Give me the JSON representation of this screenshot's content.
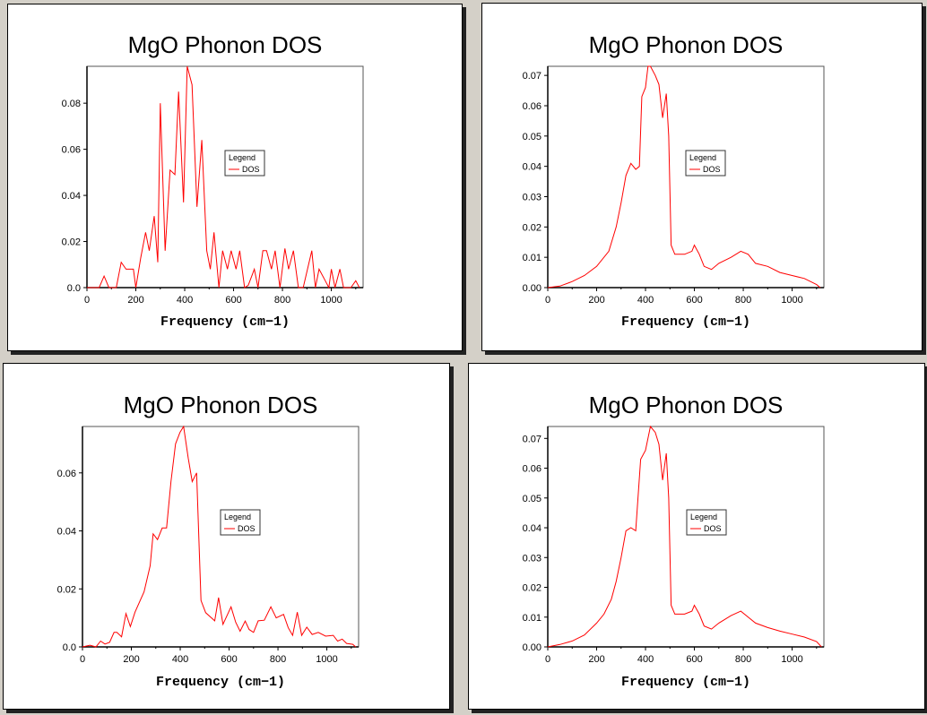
{
  "chart_data": [
    {
      "type": "line",
      "title": "MgO Phonon DOS",
      "xlabel": "Frequency (cm−1)",
      "ylabel": "",
      "xlim": [
        0,
        1130
      ],
      "ylim": [
        0,
        0.096
      ],
      "xticks": [
        0,
        200,
        400,
        600,
        800,
        1000
      ],
      "yticks": [
        0.0,
        0.02,
        0.04,
        0.06,
        0.08
      ],
      "ytick_labels": [
        "0.0",
        "0.02",
        "0.04",
        "0.06",
        "0.08"
      ],
      "legend": {
        "title": "Legend",
        "entries": [
          "DOS"
        ],
        "placement": "center-right"
      },
      "grid": false,
      "color": "#ff0000",
      "series": [
        {
          "name": "DOS",
          "x": [
            0,
            50,
            70,
            90,
            120,
            140,
            160,
            190,
            200,
            220,
            240,
            255,
            275,
            290,
            300,
            320,
            340,
            360,
            375,
            395,
            410,
            430,
            450,
            470,
            490,
            505,
            520,
            540,
            555,
            575,
            590,
            610,
            625,
            645,
            660,
            685,
            700,
            720,
            735,
            755,
            770,
            790,
            810,
            825,
            845,
            865,
            885,
            920,
            935,
            950,
            975,
            990,
            1000,
            1015,
            1035,
            1050,
            1080,
            1100,
            1115
          ],
          "y": [
            0,
            0,
            0.005,
            0,
            0,
            0.011,
            0.008,
            0.008,
            0,
            0.013,
            0.024,
            0.016,
            0.031,
            0.011,
            0.08,
            0.016,
            0.051,
            0.049,
            0.085,
            0.037,
            0.096,
            0.088,
            0.035,
            0.064,
            0.016,
            0.008,
            0.024,
            0,
            0.016,
            0.008,
            0.016,
            0.008,
            0.016,
            0,
            0.001,
            0.008,
            0,
            0.016,
            0.016,
            0.008,
            0.016,
            0,
            0.017,
            0.008,
            0.016,
            0,
            0,
            0.016,
            0,
            0.008,
            0.003,
            0,
            0.008,
            0,
            0.008,
            0,
            0,
            0.003,
            0
          ]
        }
      ]
    },
    {
      "type": "line",
      "title": "MgO Phonon DOS",
      "xlabel": "Frequency (cm−1)",
      "ylabel": "",
      "xlim": [
        0,
        1130
      ],
      "ylim": [
        0,
        0.073
      ],
      "xticks": [
        0,
        200,
        400,
        600,
        800,
        1000
      ],
      "yticks": [
        0.0,
        0.01,
        0.02,
        0.03,
        0.04,
        0.05,
        0.06,
        0.07
      ],
      "ytick_labels": [
        "0.00",
        "0.01",
        "0.02",
        "0.03",
        "0.04",
        "0.05",
        "0.06",
        "0.07"
      ],
      "legend": {
        "title": "Legend",
        "entries": [
          "DOS"
        ],
        "placement": "center-right"
      },
      "grid": false,
      "color": "#ff0000",
      "series": [
        {
          "name": "DOS",
          "x": [
            0,
            50,
            100,
            150,
            200,
            250,
            280,
            300,
            320,
            340,
            360,
            375,
            385,
            400,
            410,
            420,
            440,
            455,
            470,
            485,
            495,
            505,
            520,
            560,
            590,
            600,
            620,
            640,
            670,
            700,
            750,
            790,
            820,
            850,
            900,
            950,
            1000,
            1050,
            1100,
            1115
          ],
          "y": [
            0,
            0.0005,
            0.002,
            0.004,
            0.007,
            0.012,
            0.02,
            0.028,
            0.037,
            0.041,
            0.039,
            0.04,
            0.063,
            0.066,
            0.073,
            0.073,
            0.07,
            0.067,
            0.056,
            0.064,
            0.05,
            0.014,
            0.011,
            0.011,
            0.012,
            0.014,
            0.011,
            0.007,
            0.006,
            0.008,
            0.01,
            0.012,
            0.011,
            0.008,
            0.007,
            0.005,
            0.004,
            0.003,
            0.001,
            0
          ]
        }
      ]
    },
    {
      "type": "line",
      "title": "MgO Phonon DOS",
      "xlabel": "Frequency (cm−1)",
      "ylabel": "",
      "xlim": [
        0,
        1130
      ],
      "ylim": [
        0,
        0.076
      ],
      "xticks": [
        0,
        200,
        400,
        600,
        800,
        1000
      ],
      "yticks": [
        0.0,
        0.02,
        0.04,
        0.06
      ],
      "ytick_labels": [
        "0.0",
        "0.02",
        "0.04",
        "0.06"
      ],
      "legend": {
        "title": "Legend",
        "entries": [
          "DOS"
        ],
        "placement": "center-right"
      },
      "grid": false,
      "color": "#ff0000",
      "series": [
        {
          "name": "DOS",
          "x": [
            0,
            31,
            55,
            74,
            92,
            111,
            129,
            141,
            160,
            178,
            196,
            215,
            252,
            277,
            289,
            307,
            326,
            344,
            362,
            381,
            399,
            414,
            433,
            449,
            467,
            485,
            504,
            541,
            557,
            575,
            608,
            627,
            645,
            666,
            682,
            700,
            719,
            744,
            771,
            793,
            823,
            842,
            860,
            879,
            897,
            918,
            940,
            965,
            995,
            1026,
            1044,
            1063,
            1081,
            1106,
            1118
          ],
          "y": [
            0,
            0.0006,
            0,
            0.002,
            0.001,
            0.0016,
            0.005,
            0.005,
            0.0035,
            0.0115,
            0.007,
            0.012,
            0.019,
            0.028,
            0.039,
            0.037,
            0.041,
            0.041,
            0.057,
            0.07,
            0.074,
            0.076,
            0.065,
            0.057,
            0.06,
            0.016,
            0.0118,
            0.009,
            0.017,
            0.0078,
            0.0138,
            0.0085,
            0.0054,
            0.0089,
            0.006,
            0.005,
            0.009,
            0.0092,
            0.0138,
            0.01,
            0.0112,
            0.0066,
            0.004,
            0.012,
            0.004,
            0.0068,
            0.0043,
            0.005,
            0.0037,
            0.004,
            0.002,
            0.0027,
            0.0012,
            0.0009,
            0
          ]
        }
      ]
    },
    {
      "type": "line",
      "title": "MgO Phonon DOS",
      "xlabel": "Frequency (cm−1)",
      "ylabel": "",
      "xlim": [
        0,
        1130
      ],
      "ylim": [
        0,
        0.074
      ],
      "xticks": [
        0,
        200,
        400,
        600,
        800,
        1000
      ],
      "yticks": [
        0.0,
        0.01,
        0.02,
        0.03,
        0.04,
        0.05,
        0.06,
        0.07
      ],
      "ytick_labels": [
        "0.00",
        "0.01",
        "0.02",
        "0.03",
        "0.04",
        "0.05",
        "0.06",
        "0.07"
      ],
      "legend": {
        "title": "Legend",
        "entries": [
          "DOS"
        ],
        "placement": "center-right"
      },
      "grid": false,
      "color": "#ff0000",
      "series": [
        {
          "name": "DOS",
          "x": [
            0,
            50,
            100,
            150,
            200,
            230,
            260,
            280,
            300,
            320,
            340,
            360,
            380,
            400,
            420,
            440,
            455,
            470,
            485,
            495,
            505,
            520,
            560,
            590,
            600,
            620,
            640,
            670,
            700,
            750,
            790,
            820,
            850,
            900,
            950,
            1000,
            1050,
            1100,
            1120
          ],
          "y": [
            0,
            0.0008,
            0.002,
            0.004,
            0.008,
            0.011,
            0.016,
            0.022,
            0.03,
            0.039,
            0.04,
            0.039,
            0.063,
            0.066,
            0.074,
            0.072,
            0.068,
            0.056,
            0.065,
            0.05,
            0.014,
            0.011,
            0.011,
            0.012,
            0.014,
            0.011,
            0.007,
            0.006,
            0.008,
            0.0105,
            0.012,
            0.01,
            0.008,
            0.0065,
            0.0053,
            0.0043,
            0.0033,
            0.0018,
            0
          ]
        }
      ]
    }
  ]
}
